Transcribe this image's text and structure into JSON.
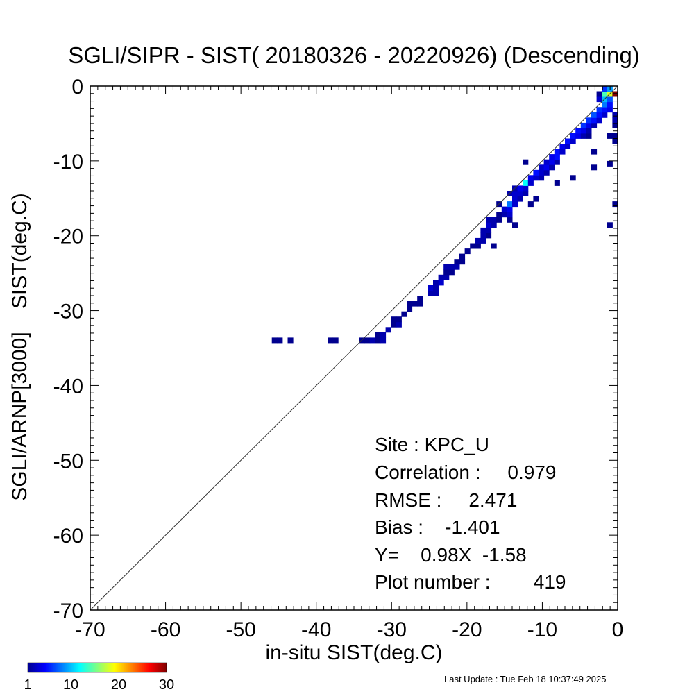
{
  "chart_data": {
    "type": "heatmap",
    "title": "SGLI/SIPR - SIST( 20180326 - 20220926) (Descending)",
    "xlabel": "in-situ SIST(deg.C)",
    "ylabel": "SGLI/ARNP[3000]    SIST(deg.C)",
    "xlim": [
      -70,
      0
    ],
    "ylim": [
      -70,
      0
    ],
    "x_ticks": [
      -70,
      -60,
      -50,
      -40,
      -30,
      -20,
      -10,
      0
    ],
    "y_ticks": [
      0,
      -10,
      -20,
      -30,
      -40,
      -50,
      -60,
      -70
    ],
    "x_tick_labels": [
      "-70",
      "-60",
      "-50",
      "-40",
      "-30",
      "-20",
      "-10",
      "0"
    ],
    "y_tick_labels": [
      "0",
      "-10",
      "-20",
      "-30",
      "-40",
      "-50",
      "-60",
      "-70"
    ],
    "reference_line": "1:1",
    "bin_size": 0.7,
    "colorbar": {
      "min": 1,
      "max": 30,
      "ticks": [
        "1",
        "10",
        "20",
        "30"
      ],
      "colors": [
        "#00008f",
        "#0000ff",
        "#0080ff",
        "#00ffff",
        "#80ff80",
        "#ffff00",
        "#ff8000",
        "#ff0000",
        "#800000"
      ]
    },
    "counts_on_diagonal": [
      {
        "x_from": -34,
        "x_to": -1,
        "count": 1
      }
    ],
    "cells": [
      {
        "x": -45.2,
        "y": -33.6,
        "count": 1
      },
      {
        "x": -44.5,
        "y": -33.6,
        "count": 1
      },
      {
        "x": -43.1,
        "y": -33.6,
        "count": 1
      },
      {
        "x": -37.8,
        "y": -33.6,
        "count": 1
      },
      {
        "x": -37.1,
        "y": -33.6,
        "count": 1
      },
      {
        "x": -33.6,
        "y": -33.6,
        "count": 1
      },
      {
        "x": -32.9,
        "y": -33.6,
        "count": 1
      },
      {
        "x": -32.2,
        "y": -33.6,
        "count": 2
      },
      {
        "x": -31.5,
        "y": -33.6,
        "count": 1
      },
      {
        "x": -30.8,
        "y": -33.6,
        "count": 2
      },
      {
        "x": -31.5,
        "y": -32.9,
        "count": 1
      },
      {
        "x": -30.8,
        "y": -32.9,
        "count": 2
      },
      {
        "x": -30.1,
        "y": -32.2,
        "count": 2
      },
      {
        "x": -29.4,
        "y": -31.5,
        "count": 1
      },
      {
        "x": -28.7,
        "y": -31.5,
        "count": 2
      },
      {
        "x": -29.4,
        "y": -30.8,
        "count": 1
      },
      {
        "x": -28.7,
        "y": -30.8,
        "count": 1
      },
      {
        "x": -28.0,
        "y": -30.1,
        "count": 1
      },
      {
        "x": -27.3,
        "y": -29.4,
        "count": 1
      },
      {
        "x": -27.3,
        "y": -28.7,
        "count": 1
      },
      {
        "x": -26.6,
        "y": -28.7,
        "count": 1
      },
      {
        "x": -25.9,
        "y": -28.7,
        "count": 1
      },
      {
        "x": -25.9,
        "y": -28.0,
        "count": 1
      },
      {
        "x": -24.5,
        "y": -27.3,
        "count": 2
      },
      {
        "x": -23.8,
        "y": -27.3,
        "count": 2
      },
      {
        "x": -24.5,
        "y": -26.6,
        "count": 3
      },
      {
        "x": -23.8,
        "y": -26.6,
        "count": 2
      },
      {
        "x": -23.8,
        "y": -25.9,
        "count": 2
      },
      {
        "x": -23.1,
        "y": -25.9,
        "count": 3
      },
      {
        "x": -23.1,
        "y": -25.2,
        "count": 2
      },
      {
        "x": -22.4,
        "y": -25.2,
        "count": 2
      },
      {
        "x": -22.4,
        "y": -24.5,
        "count": 1
      },
      {
        "x": -21.7,
        "y": -24.5,
        "count": 1
      },
      {
        "x": -22.4,
        "y": -23.8,
        "count": 2
      },
      {
        "x": -21.7,
        "y": -23.8,
        "count": 2
      },
      {
        "x": -21.0,
        "y": -23.8,
        "count": 2
      },
      {
        "x": -21.0,
        "y": -23.1,
        "count": 1
      },
      {
        "x": -20.3,
        "y": -23.1,
        "count": 1
      },
      {
        "x": -20.3,
        "y": -22.4,
        "count": 1
      },
      {
        "x": -19.6,
        "y": -21.7,
        "count": 1
      },
      {
        "x": -18.9,
        "y": -21.0,
        "count": 1
      },
      {
        "x": -18.2,
        "y": -21.0,
        "count": 1
      },
      {
        "x": -18.2,
        "y": -20.3,
        "count": 2
      },
      {
        "x": -17.5,
        "y": -20.3,
        "count": 2
      },
      {
        "x": -17.5,
        "y": -19.6,
        "count": 2
      },
      {
        "x": -16.8,
        "y": -19.6,
        "count": 1
      },
      {
        "x": -16.1,
        "y": -21.0,
        "count": 1
      },
      {
        "x": -17.5,
        "y": -18.9,
        "count": 2
      },
      {
        "x": -16.8,
        "y": -18.9,
        "count": 2
      },
      {
        "x": -16.8,
        "y": -18.2,
        "count": 3
      },
      {
        "x": -16.1,
        "y": -18.2,
        "count": 2
      },
      {
        "x": -16.8,
        "y": -17.5,
        "count": 2
      },
      {
        "x": -16.1,
        "y": -17.5,
        "count": 2
      },
      {
        "x": -15.4,
        "y": -17.5,
        "count": 1
      },
      {
        "x": -14.0,
        "y": -17.5,
        "count": 1
      },
      {
        "x": -13.3,
        "y": -18.2,
        "count": 1
      },
      {
        "x": -15.4,
        "y": -16.8,
        "count": 1
      },
      {
        "x": -14.7,
        "y": -16.8,
        "count": 2
      },
      {
        "x": -14.0,
        "y": -16.8,
        "count": 3
      },
      {
        "x": -14.7,
        "y": -16.1,
        "count": 3
      },
      {
        "x": -14.0,
        "y": -16.1,
        "count": 4
      },
      {
        "x": -15.4,
        "y": -15.4,
        "count": 1
      },
      {
        "x": -14.0,
        "y": -15.4,
        "count": 8
      },
      {
        "x": -13.3,
        "y": -15.4,
        "count": 3
      },
      {
        "x": -13.3,
        "y": -14.7,
        "count": 3
      },
      {
        "x": -12.6,
        "y": -14.7,
        "count": 2
      },
      {
        "x": -11.2,
        "y": -15.4,
        "count": 1
      },
      {
        "x": -10.5,
        "y": -14.7,
        "count": 1
      },
      {
        "x": -14.0,
        "y": -14.0,
        "count": 2
      },
      {
        "x": -13.3,
        "y": -14.0,
        "count": 3
      },
      {
        "x": -12.6,
        "y": -14.0,
        "count": 3
      },
      {
        "x": -11.9,
        "y": -14.0,
        "count": 2
      },
      {
        "x": -13.3,
        "y": -13.3,
        "count": 2
      },
      {
        "x": -12.6,
        "y": -13.3,
        "count": 4
      },
      {
        "x": -11.9,
        "y": -13.3,
        "count": 3
      },
      {
        "x": -11.9,
        "y": -12.6,
        "count": 12
      },
      {
        "x": -11.2,
        "y": -12.6,
        "count": 3
      },
      {
        "x": -11.2,
        "y": -11.9,
        "count": 4
      },
      {
        "x": -10.5,
        "y": -11.9,
        "count": 3
      },
      {
        "x": -9.8,
        "y": -11.9,
        "count": 2
      },
      {
        "x": -10.5,
        "y": -11.2,
        "count": 5
      },
      {
        "x": -9.8,
        "y": -11.2,
        "count": 3
      },
      {
        "x": -9.1,
        "y": -11.2,
        "count": 2
      },
      {
        "x": -11.9,
        "y": -9.8,
        "count": 1
      },
      {
        "x": -9.8,
        "y": -10.5,
        "count": 3
      },
      {
        "x": -9.1,
        "y": -10.5,
        "count": 4
      },
      {
        "x": -8.4,
        "y": -10.5,
        "count": 2
      },
      {
        "x": -7.7,
        "y": -12.6,
        "count": 1
      },
      {
        "x": -5.6,
        "y": -11.9,
        "count": 1
      },
      {
        "x": -9.1,
        "y": -9.8,
        "count": 3
      },
      {
        "x": -8.4,
        "y": -9.8,
        "count": 4
      },
      {
        "x": -7.7,
        "y": -9.8,
        "count": 2
      },
      {
        "x": -8.4,
        "y": -9.1,
        "count": 4
      },
      {
        "x": -7.7,
        "y": -9.1,
        "count": 5
      },
      {
        "x": -7.7,
        "y": -8.4,
        "count": 5
      },
      {
        "x": -7.0,
        "y": -8.4,
        "count": 3
      },
      {
        "x": -7.0,
        "y": -7.7,
        "count": 4
      },
      {
        "x": -6.3,
        "y": -7.7,
        "count": 3
      },
      {
        "x": -6.3,
        "y": -7.0,
        "count": 5
      },
      {
        "x": -5.6,
        "y": -7.0,
        "count": 3
      },
      {
        "x": -5.6,
        "y": -6.3,
        "count": 5
      },
      {
        "x": -4.9,
        "y": -6.3,
        "count": 4
      },
      {
        "x": -4.2,
        "y": -6.3,
        "count": 2
      },
      {
        "x": -3.5,
        "y": -6.3,
        "count": 1
      },
      {
        "x": -4.9,
        "y": -5.6,
        "count": 5
      },
      {
        "x": -4.2,
        "y": -5.6,
        "count": 4
      },
      {
        "x": -3.5,
        "y": -5.6,
        "count": 2
      },
      {
        "x": -4.2,
        "y": -4.9,
        "count": 6
      },
      {
        "x": -3.5,
        "y": -4.9,
        "count": 4
      },
      {
        "x": -2.8,
        "y": -4.9,
        "count": 2
      },
      {
        "x": -3.5,
        "y": -4.2,
        "count": 6
      },
      {
        "x": -2.8,
        "y": -4.2,
        "count": 5
      },
      {
        "x": -2.1,
        "y": -4.2,
        "count": 3
      },
      {
        "x": -2.8,
        "y": -3.5,
        "count": 7
      },
      {
        "x": -2.1,
        "y": -3.5,
        "count": 5
      },
      {
        "x": -1.4,
        "y": -3.5,
        "count": 3
      },
      {
        "x": -2.1,
        "y": -2.8,
        "count": 6
      },
      {
        "x": -1.4,
        "y": -2.8,
        "count": 5
      },
      {
        "x": -0.7,
        "y": -2.8,
        "count": 4
      },
      {
        "x": -1.4,
        "y": -2.1,
        "count": 8
      },
      {
        "x": -0.7,
        "y": -2.1,
        "count": 5
      },
      {
        "x": -2.1,
        "y": -1.4,
        "count": 3
      },
      {
        "x": -1.4,
        "y": -1.4,
        "count": 10
      },
      {
        "x": -0.7,
        "y": -1.4,
        "count": 7
      },
      {
        "x": -2.1,
        "y": -0.7,
        "count": 1
      },
      {
        "x": -1.4,
        "y": -0.7,
        "count": 14
      },
      {
        "x": -0.7,
        "y": -0.7,
        "count": 18
      },
      {
        "x": 0.0,
        "y": -0.7,
        "count": 30
      },
      {
        "x": -1.4,
        "y": 0.0,
        "count": 6
      },
      {
        "x": -0.7,
        "y": 0.0,
        "count": 9
      },
      {
        "x": 0.0,
        "y": -3.5,
        "count": 2
      },
      {
        "x": 0.0,
        "y": -4.2,
        "count": 2
      },
      {
        "x": 0.0,
        "y": -4.9,
        "count": 1
      },
      {
        "x": 0.0,
        "y": -6.3,
        "count": 1
      },
      {
        "x": -0.7,
        "y": -6.3,
        "count": 1
      },
      {
        "x": 0.0,
        "y": -7.0,
        "count": 1
      },
      {
        "x": -2.8,
        "y": -8.4,
        "count": 1
      },
      {
        "x": -0.7,
        "y": -10.0,
        "count": 1
      },
      {
        "x": -2.8,
        "y": -10.5,
        "count": 1
      },
      {
        "x": 0.0,
        "y": -15.4,
        "count": 1
      },
      {
        "x": -0.7,
        "y": -18.2,
        "count": 1
      }
    ]
  },
  "stats": {
    "site": "Site : KPC_U",
    "correlation": "Correlation :     0.979",
    "rmse": "RMSE :     2.471",
    "bias": "Bias :    -1.401",
    "fit": "Y=    0.98X  -1.58",
    "plot_number": "Plot number :        419"
  },
  "footer": {
    "last_update": "Last Update : Tue Feb 18 10:37:49 2025"
  }
}
